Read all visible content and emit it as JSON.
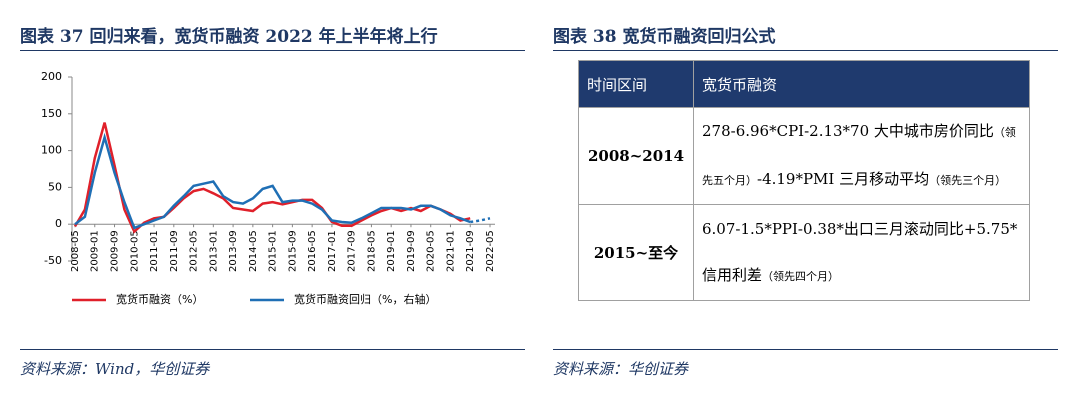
{
  "chart_data": {
    "type": "line",
    "title": "图表 37  回归来看，宽货币融资 2022 年上半年将上行",
    "x": [
      "2008-05",
      "2008-09",
      "2009-01",
      "2009-05",
      "2009-09",
      "2010-01",
      "2010-05",
      "2010-09",
      "2011-01",
      "2011-05",
      "2011-09",
      "2012-01",
      "2012-05",
      "2012-09",
      "2013-01",
      "2013-05",
      "2013-09",
      "2014-01",
      "2014-05",
      "2014-09",
      "2015-01",
      "2015-05",
      "2015-09",
      "2016-01",
      "2016-05",
      "2016-09",
      "2017-01",
      "2017-05",
      "2017-09",
      "2018-01",
      "2018-05",
      "2018-09",
      "2019-01",
      "2019-05",
      "2019-09",
      "2020-01",
      "2020-05",
      "2020-09",
      "2021-01",
      "2021-05",
      "2021-09",
      "2022-01",
      "2022-05"
    ],
    "series": [
      {
        "name": "宽货币融资（%）",
        "color": "#e0202a",
        "values": [
          -3,
          20,
          90,
          138,
          80,
          20,
          -10,
          2,
          8,
          10,
          22,
          35,
          45,
          48,
          42,
          35,
          22,
          20,
          18,
          28,
          30,
          27,
          30,
          33,
          33,
          22,
          3,
          -2,
          -2,
          5,
          12,
          18,
          22,
          18,
          22,
          18,
          25,
          20,
          14,
          5,
          8,
          null,
          null
        ]
      },
      {
        "name": "宽货币融资回归（%，右轴）",
        "color": "#1f6fb5",
        "dashed_from": "2021-09",
        "values": [
          0,
          10,
          70,
          118,
          70,
          30,
          -5,
          0,
          5,
          10,
          25,
          38,
          52,
          55,
          58,
          38,
          30,
          28,
          35,
          48,
          52,
          30,
          32,
          32,
          28,
          20,
          5,
          3,
          2,
          8,
          15,
          22,
          22,
          22,
          20,
          25,
          25,
          20,
          12,
          8,
          3,
          5,
          8
        ]
      }
    ],
    "xlim": [
      "2008-05",
      "2022-05"
    ],
    "xticks": [
      "2008-05",
      "2009-01",
      "2009-09",
      "2010-05",
      "2011-01",
      "2011-09",
      "2012-05",
      "2013-01",
      "2013-09",
      "2014-05",
      "2015-01",
      "2015-09",
      "2016-05",
      "2017-01",
      "2017-09",
      "2018-05",
      "2019-01",
      "2019-09",
      "2020-05",
      "2021-01",
      "2021-09",
      "2022-05"
    ],
    "ylim": [
      -50,
      200
    ],
    "yticks": [
      -50,
      0,
      50,
      100,
      150,
      200
    ],
    "source": "资料来源：Wind，华创证券"
  },
  "table": {
    "title": "图表 38  宽货币融资回归公式",
    "header": [
      "时间区间",
      "宽货币融资"
    ],
    "rows": [
      [
        "2008~2014",
        [
          "278-6.96*CPI-2.13*70 大中城市房价同比",
          "（领先五个月）",
          "-4.19*PMI 三月移动平均",
          "（领先三个月）"
        ]
      ],
      [
        "2015~至今",
        [
          "6.07-1.5*PPI-0.38*出口三月滚动同比+5.75*信用利差",
          "（领先四个月）"
        ]
      ]
    ],
    "source": "资料来源：华创证券"
  }
}
